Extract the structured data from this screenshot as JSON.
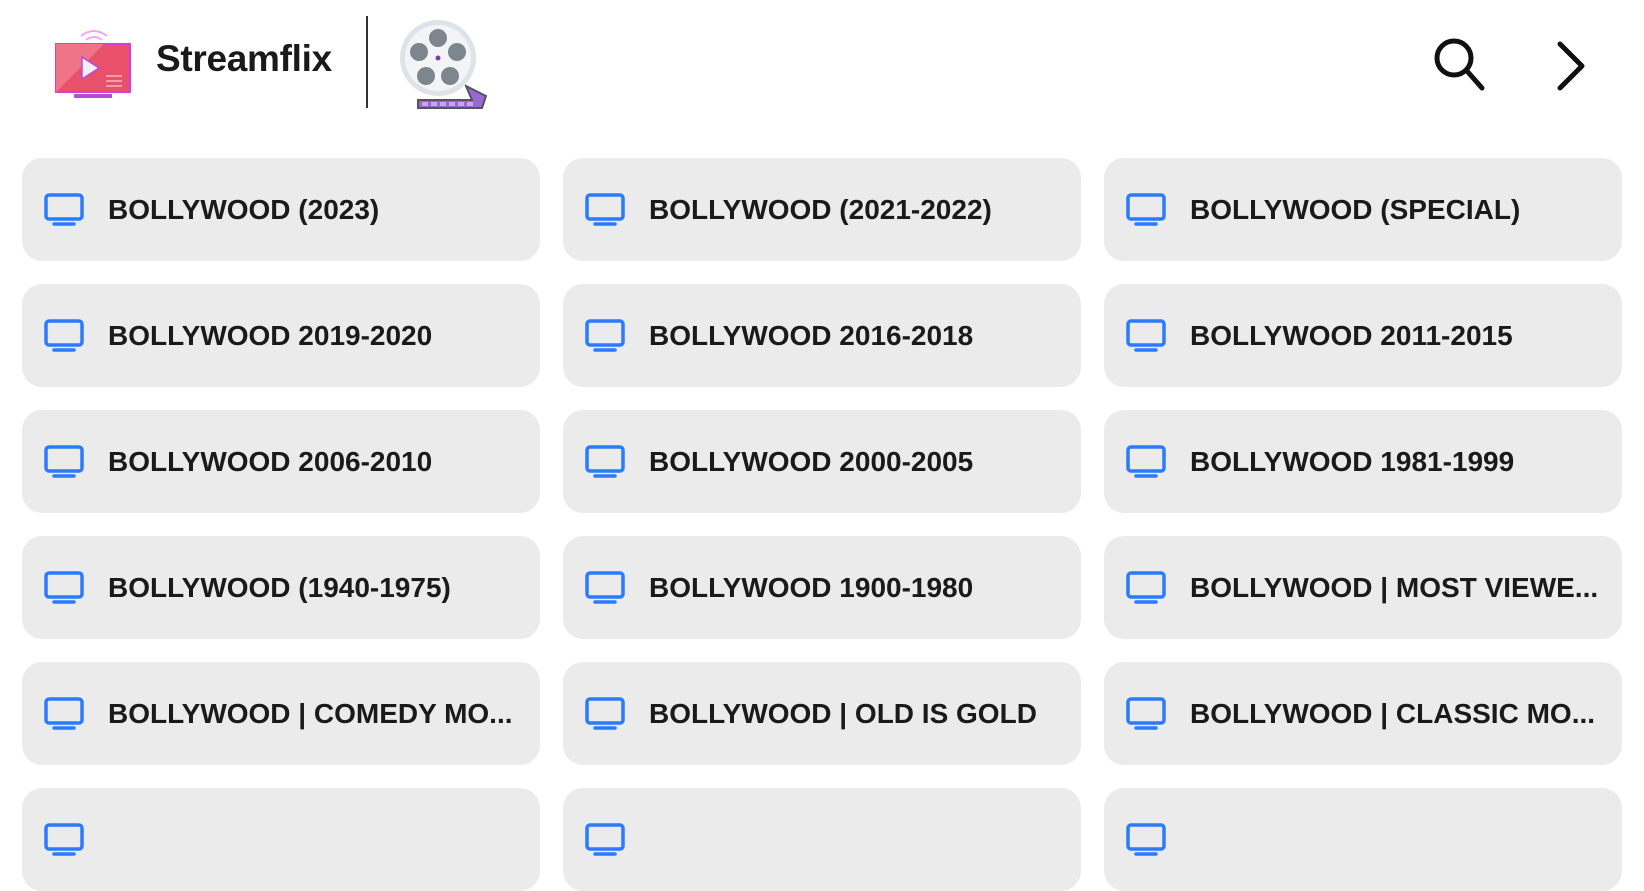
{
  "header": {
    "title": "Streamflix",
    "logo_icon": "tv-play-icon",
    "reel_icon": "film-reel-icon",
    "search_icon": "search-icon",
    "next_icon": "chevron-right-icon"
  },
  "colors": {
    "accent": "#2a7bff",
    "card_bg": "#ebebeb",
    "text": "#1a1a1a",
    "logo": "#e9506a"
  },
  "categories": [
    {
      "label": "BOLLYWOOD (2023)"
    },
    {
      "label": "BOLLYWOOD (2021-2022)"
    },
    {
      "label": "BOLLYWOOD (SPECIAL)"
    },
    {
      "label": "BOLLYWOOD 2019-2020"
    },
    {
      "label": "BOLLYWOOD 2016-2018"
    },
    {
      "label": "BOLLYWOOD 2011-2015"
    },
    {
      "label": "BOLLYWOOD 2006-2010"
    },
    {
      "label": "BOLLYWOOD 2000-2005"
    },
    {
      "label": "BOLLYWOOD 1981-1999"
    },
    {
      "label": "BOLLYWOOD (1940-1975)"
    },
    {
      "label": "BOLLYWOOD 1900-1980"
    },
    {
      "label": "BOLLYWOOD | MOST VIEWE..."
    },
    {
      "label": "BOLLYWOOD | COMEDY MO..."
    },
    {
      "label": "BOLLYWOOD | OLD IS GOLD"
    },
    {
      "label": "BOLLYWOOD | CLASSIC MO..."
    },
    {
      "label": ""
    },
    {
      "label": ""
    },
    {
      "label": ""
    }
  ]
}
